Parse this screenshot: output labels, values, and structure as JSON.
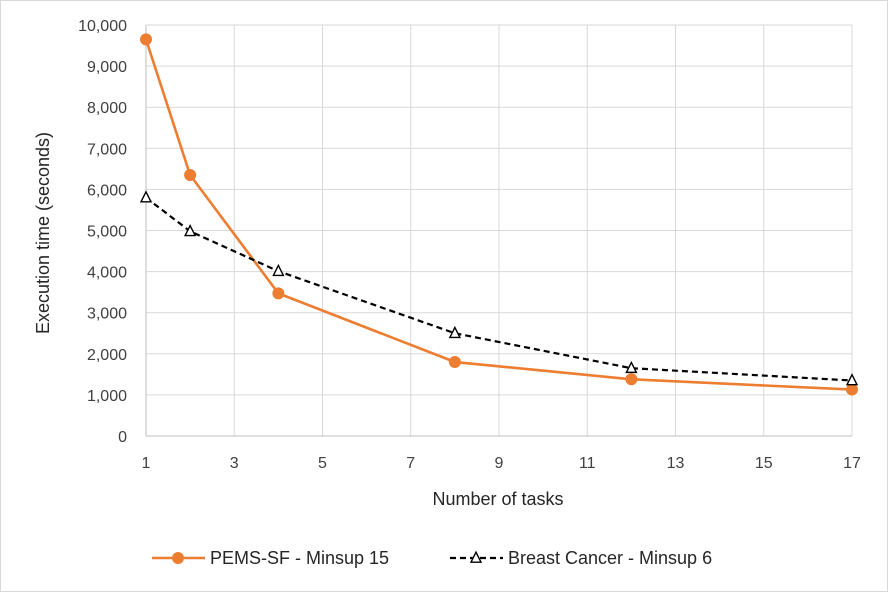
{
  "chart_data": {
    "type": "line",
    "xlabel": "Number of tasks",
    "ylabel": "Execution time (seconds)",
    "xlim": [
      1,
      17
    ],
    "ylim": [
      0,
      10000
    ],
    "x_ticks": [
      1,
      3,
      5,
      7,
      9,
      11,
      13,
      15,
      17
    ],
    "x_tick_labels": [
      "1",
      "3",
      "5",
      "7",
      "9",
      "11",
      "13",
      "15",
      "17"
    ],
    "y_ticks": [
      0,
      1000,
      2000,
      3000,
      4000,
      5000,
      6000,
      7000,
      8000,
      9000,
      10000
    ],
    "y_tick_labels": [
      "0",
      "1,000",
      "2,000",
      "3,000",
      "4,000",
      "5,000",
      "6,000",
      "7,000",
      "8,000",
      "9,000",
      "10,000"
    ],
    "grid": true,
    "legend_position": "bottom",
    "series": [
      {
        "name": "PEMS-SF - Minsup 15",
        "color": "#ed7d31",
        "marker": "circle",
        "line_style": "solid",
        "x": [
          1,
          2,
          4,
          8,
          12,
          17
        ],
        "y": [
          9650,
          6350,
          3470,
          1800,
          1380,
          1130
        ]
      },
      {
        "name": "Breast Cancer - Minsup 6",
        "color": "#000000",
        "marker": "triangle-open",
        "line_style": "dashed",
        "x": [
          1,
          2,
          4,
          8,
          12,
          17
        ],
        "y": [
          5800,
          4980,
          4010,
          2500,
          1650,
          1350
        ]
      }
    ]
  }
}
